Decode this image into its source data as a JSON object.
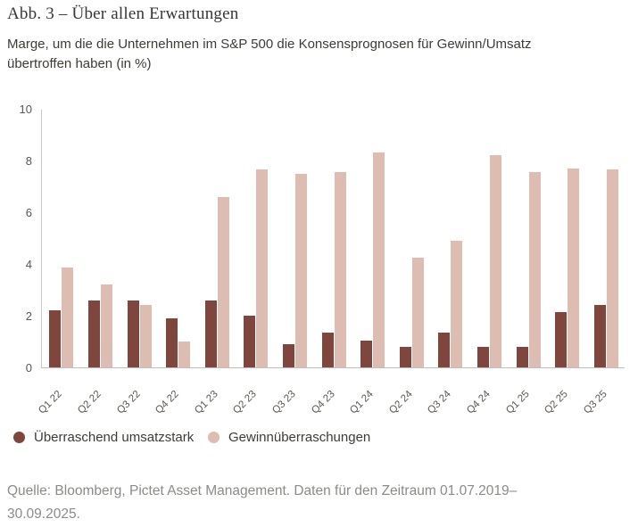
{
  "figure": {
    "title": "Abb. 3 – Über allen Erwartungen",
    "subtitle": "Marge, um die die Unternehmen im S&P 500 die Konsensprognosen für Gewinn/Umsatz übertroffen haben (in %)",
    "source": "Quelle: Bloomberg, Pictet Asset Management. Daten für den Zeitraum 01.07.2019–30.09.2025."
  },
  "chart_data": {
    "type": "bar",
    "categories": [
      "Q1 22",
      "Q2 22",
      "Q3 22",
      "Q4 22",
      "Q1 23",
      "Q2 23",
      "Q3 23",
      "Q4 23",
      "Q1 24",
      "Q2 24",
      "Q3 24",
      "Q4 24",
      "Q1 25",
      "Q2 25",
      "Q3 25"
    ],
    "series": [
      {
        "name": "Überraschend umsatzstark",
        "color": "#7E463C",
        "values": [
          2.2,
          2.6,
          2.6,
          1.9,
          2.6,
          2.0,
          0.9,
          1.35,
          1.05,
          0.8,
          1.35,
          0.8,
          0.8,
          2.15,
          2.4
        ]
      },
      {
        "name": "Gewinnüberraschungen",
        "color": "#DDBCB2",
        "values": [
          3.85,
          3.2,
          2.4,
          1.0,
          6.6,
          7.65,
          7.5,
          7.55,
          8.3,
          4.25,
          4.9,
          8.2,
          7.55,
          7.7,
          7.65
        ]
      }
    ],
    "title": "Abb. 3 – Über allen Erwartungen",
    "xlabel": "",
    "ylabel": "",
    "ylim": [
      0,
      10
    ],
    "yticks": [
      0,
      2,
      4,
      6,
      8,
      10
    ],
    "grid": false,
    "legend_position": "bottom-left",
    "axis_color": "#c8c7c4",
    "tick_label_color": "#5b5650"
  }
}
